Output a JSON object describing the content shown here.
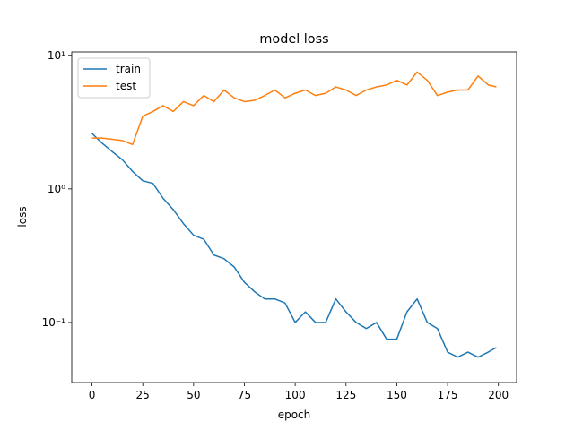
{
  "chart_data": {
    "type": "line",
    "title": "model loss",
    "x_label": "epoch",
    "y_label": "loss",
    "x": [
      0,
      5,
      10,
      15,
      20,
      25,
      30,
      35,
      40,
      45,
      50,
      55,
      60,
      65,
      70,
      75,
      80,
      85,
      90,
      95,
      100,
      105,
      110,
      115,
      120,
      125,
      130,
      135,
      140,
      145,
      150,
      155,
      160,
      165,
      170,
      175,
      180,
      185,
      190,
      195,
      199
    ],
    "series": [
      {
        "name": "train",
        "color": "#1f77b4",
        "values": [
          2.6,
          2.2,
          1.9,
          1.65,
          1.35,
          1.15,
          1.1,
          0.85,
          0.7,
          0.55,
          0.45,
          0.42,
          0.32,
          0.3,
          0.26,
          0.2,
          0.17,
          0.15,
          0.15,
          0.14,
          0.1,
          0.12,
          0.1,
          0.1,
          0.15,
          0.12,
          0.1,
          0.09,
          0.1,
          0.075,
          0.075,
          0.12,
          0.15,
          0.1,
          0.09,
          0.06,
          0.055,
          0.06,
          0.055,
          0.06,
          0.065
        ]
      },
      {
        "name": "test",
        "color": "#ff7f0e",
        "values": [
          2.4,
          2.4,
          2.35,
          2.3,
          2.15,
          3.5,
          3.8,
          4.2,
          3.8,
          4.5,
          4.2,
          5.0,
          4.5,
          5.5,
          4.8,
          4.5,
          4.6,
          5.0,
          5.5,
          4.8,
          5.2,
          5.5,
          5.0,
          5.2,
          5.8,
          5.5,
          5.0,
          5.5,
          5.8,
          6.0,
          6.5,
          6.0,
          7.5,
          6.5,
          5.0,
          5.3,
          5.5,
          5.5,
          7.0,
          6.0,
          5.8
        ]
      }
    ],
    "xlim": [
      -9.95,
      208.95
    ],
    "xticks": [
      0,
      25,
      50,
      75,
      100,
      125,
      150,
      175,
      200
    ],
    "ylim": [
      0.0355,
      10.6
    ],
    "yticks": [
      {
        "value": 0.1,
        "label": "10⁻¹"
      },
      {
        "value": 1,
        "label": "10⁰"
      },
      {
        "value": 10,
        "label": "10¹"
      }
    ],
    "log_y": true,
    "grid": false,
    "legend": "upper-left"
  }
}
